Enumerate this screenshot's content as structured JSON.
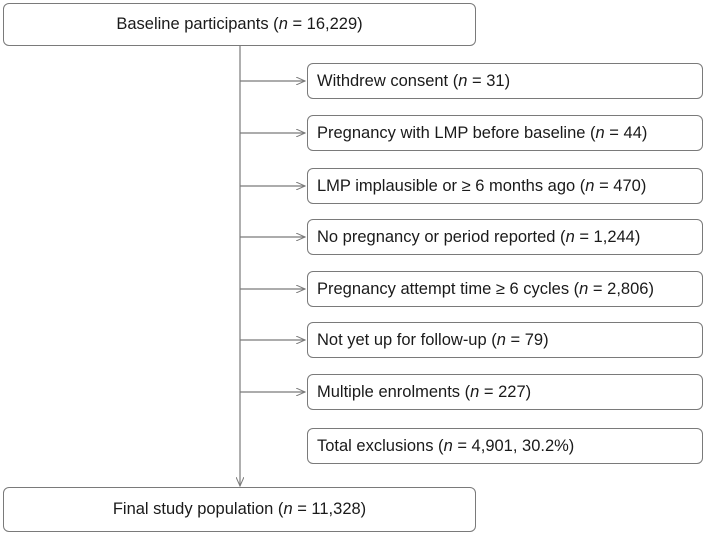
{
  "top": {
    "label": "Baseline participants (",
    "n": "n",
    "value": " = 16,229)"
  },
  "exclusions": [
    {
      "label": "Withdrew consent (",
      "n": "n",
      "value": " = 31)"
    },
    {
      "label": "Pregnancy with LMP before baseline (",
      "n": "n",
      "value": " = 44)"
    },
    {
      "label": "LMP implausible or ≥ 6 months ago (",
      "n": "n",
      "value": " = 470)"
    },
    {
      "label": "No pregnancy or period reported (",
      "n": "n",
      "value": " = 1,244)"
    },
    {
      "label": "Pregnancy attempt time ≥ 6 cycles (",
      "n": "n",
      "value": " = 2,806)"
    },
    {
      "label": "Not yet up for follow-up (",
      "n": "n",
      "value": " = 79)"
    },
    {
      "label": "Multiple enrolments (",
      "n": "n",
      "value": " = 227)"
    }
  ],
  "total": {
    "label": "Total exclusions (",
    "n": "n",
    "value": " = 4,901, 30.2%)"
  },
  "final": {
    "label": "Final study population (",
    "n": "n",
    "value": " = 11,328)"
  },
  "colors": {
    "line": "#7a7a7a",
    "border": "#7a7a7a"
  }
}
